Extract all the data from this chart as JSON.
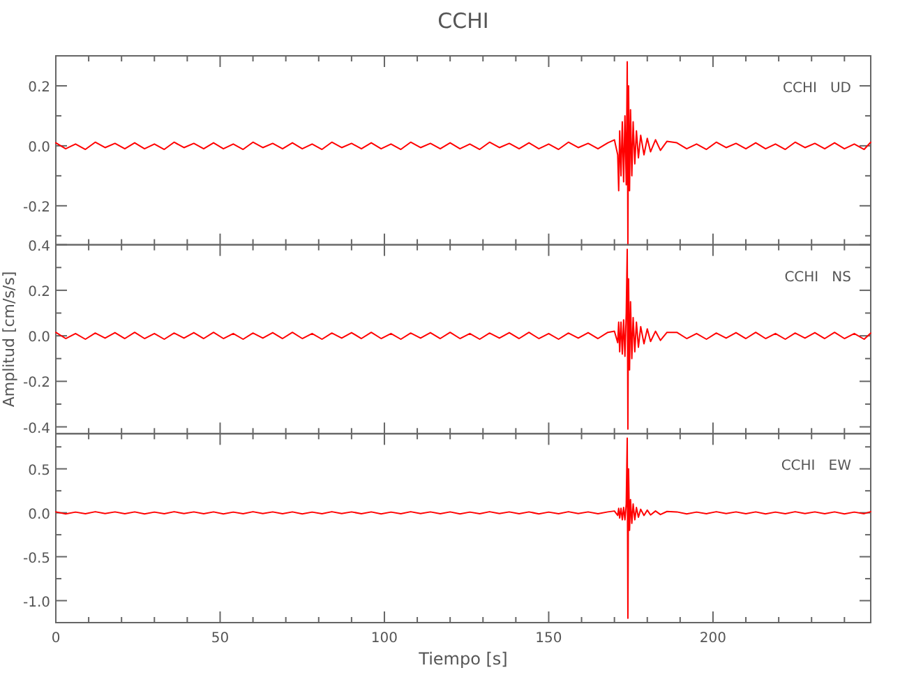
{
  "chart_data": [
    {
      "type": "line",
      "title": "CCHI",
      "annotations": [
        "CCHI   UD"
      ],
      "tick_labels": "y",
      "x": [
        0,
        3,
        6,
        9,
        12,
        15,
        18,
        21,
        24,
        27,
        30,
        33,
        36,
        39,
        42,
        45,
        48,
        51,
        54,
        57,
        60,
        63,
        66,
        69,
        72,
        75,
        78,
        81,
        84,
        87,
        90,
        93,
        96,
        99,
        102,
        105,
        108,
        111,
        114,
        117,
        120,
        123,
        126,
        129,
        132,
        135,
        138,
        141,
        144,
        147,
        150,
        153,
        156,
        159,
        162,
        165,
        168,
        170,
        171,
        171.3,
        171.6,
        172,
        172.4,
        172.8,
        173.2,
        173.6,
        173.9,
        174.1,
        174.3,
        174.6,
        174.9,
        175.3,
        175.7,
        176.2,
        176.7,
        177.3,
        178,
        179,
        180,
        181,
        182.5,
        184,
        186,
        189,
        192,
        195,
        198,
        201,
        204,
        207,
        210,
        213,
        216,
        219,
        222,
        225,
        228,
        231,
        234,
        237,
        240,
        243,
        246,
        248
      ],
      "series": [
        {
          "color": "#ff0000",
          "values": [
            0.01,
            -0.01,
            0.006,
            -0.012,
            0.012,
            -0.006,
            0.008,
            -0.01,
            0.01,
            -0.01,
            0.006,
            -0.012,
            0.012,
            -0.006,
            0.008,
            -0.01,
            0.01,
            -0.01,
            0.006,
            -0.012,
            0.012,
            -0.006,
            0.008,
            -0.01,
            0.01,
            -0.01,
            0.006,
            -0.012,
            0.012,
            -0.006,
            0.008,
            -0.01,
            0.01,
            -0.01,
            0.006,
            -0.012,
            0.012,
            -0.006,
            0.008,
            -0.01,
            0.01,
            -0.01,
            0.006,
            -0.012,
            0.012,
            -0.006,
            0.008,
            -0.01,
            0.01,
            -0.01,
            0.006,
            -0.012,
            0.012,
            -0.006,
            0.008,
            -0.01,
            0.01,
            0.02,
            -0.03,
            -0.15,
            0.05,
            -0.1,
            0.08,
            -0.12,
            0.1,
            -0.13,
            0.28,
            -0.33,
            0.2,
            -0.15,
            0.12,
            -0.1,
            0.08,
            -0.06,
            0.05,
            -0.04,
            0.035,
            -0.03,
            0.025,
            -0.02,
            0.02,
            -0.015,
            0.015,
            0.01,
            -0.01,
            0.006,
            -0.012,
            0.012,
            -0.006,
            0.008,
            -0.01,
            0.01,
            -0.01,
            0.006,
            -0.012,
            0.012,
            -0.006,
            0.008,
            -0.01,
            0.01,
            -0.01,
            0.006,
            -0.012,
            0.012
          ]
        }
      ],
      "xlim": [
        0,
        248
      ],
      "xticks": [
        0,
        {
          "value": 10,
          "label": null
        },
        {
          "value": 20,
          "label": null
        },
        {
          "value": 30,
          "label": null
        },
        {
          "value": 40,
          "label": null
        },
        50,
        {
          "value": 60,
          "label": null
        },
        {
          "value": 70,
          "label": null
        },
        {
          "value": 80,
          "label": null
        },
        {
          "value": 90,
          "label": null
        },
        100,
        {
          "value": 110,
          "label": null
        },
        {
          "value": 120,
          "label": null
        },
        {
          "value": 130,
          "label": null
        },
        {
          "value": 140,
          "label": null
        },
        150,
        {
          "value": 160,
          "label": null
        },
        {
          "value": 170,
          "label": null
        },
        {
          "value": 180,
          "label": null
        },
        {
          "value": 190,
          "label": null
        },
        200,
        {
          "value": 210,
          "label": null
        },
        {
          "value": 220,
          "label": null
        },
        {
          "value": 230,
          "label": null
        },
        {
          "value": 240,
          "label": null
        }
      ],
      "ylim": [
        -0.33,
        0.3
      ],
      "yticks": [
        {
          "value": -0.3,
          "label": null
        },
        {
          "value": -0.2,
          "label": "-0.2"
        },
        {
          "value": -0.1,
          "label": null
        },
        {
          "value": 0,
          "label": "0.0"
        },
        {
          "value": 0.1,
          "label": null
        },
        {
          "value": 0.2,
          "label": "0.2"
        }
      ]
    },
    {
      "type": "line",
      "ylabel": "Amplitud [cm/s/s]",
      "annotations": [
        "CCHI   NS"
      ],
      "tick_labels": "y",
      "x": [
        0,
        3,
        6,
        9,
        12,
        15,
        18,
        21,
        24,
        27,
        30,
        33,
        36,
        39,
        42,
        45,
        48,
        51,
        54,
        57,
        60,
        63,
        66,
        69,
        72,
        75,
        78,
        81,
        84,
        87,
        90,
        93,
        96,
        99,
        102,
        105,
        108,
        111,
        114,
        117,
        120,
        123,
        126,
        129,
        132,
        135,
        138,
        141,
        144,
        147,
        150,
        153,
        156,
        159,
        162,
        165,
        168,
        170,
        171,
        171.3,
        171.6,
        172,
        172.4,
        172.8,
        173.2,
        173.6,
        173.9,
        174.1,
        174.3,
        174.6,
        174.9,
        175.3,
        175.7,
        176.2,
        176.7,
        177.3,
        178,
        179,
        180,
        181,
        182.5,
        184,
        186,
        189,
        192,
        195,
        198,
        201,
        204,
        207,
        210,
        213,
        216,
        219,
        222,
        225,
        228,
        231,
        234,
        237,
        240,
        243,
        246,
        248
      ],
      "series": [
        {
          "color": "#ff0000",
          "values": [
            0.015,
            -0.012,
            0.01,
            -0.015,
            0.012,
            -0.01,
            0.014,
            -0.012,
            0.015,
            -0.012,
            0.01,
            -0.015,
            0.012,
            -0.01,
            0.014,
            -0.012,
            0.015,
            -0.012,
            0.01,
            -0.015,
            0.012,
            -0.01,
            0.014,
            -0.012,
            0.015,
            -0.012,
            0.01,
            -0.015,
            0.012,
            -0.01,
            0.014,
            -0.012,
            0.015,
            -0.012,
            0.01,
            -0.015,
            0.012,
            -0.01,
            0.014,
            -0.012,
            0.015,
            -0.012,
            0.01,
            -0.015,
            0.012,
            -0.01,
            0.014,
            -0.012,
            0.015,
            -0.012,
            0.01,
            -0.015,
            0.012,
            -0.01,
            0.014,
            -0.012,
            0.015,
            0.02,
            -0.03,
            0.06,
            -0.07,
            0.06,
            -0.08,
            0.07,
            -0.09,
            0.1,
            0.38,
            -0.41,
            0.25,
            -0.15,
            0.15,
            -0.1,
            0.08,
            -0.07,
            0.06,
            -0.05,
            0.04,
            -0.035,
            0.03,
            -0.025,
            0.02,
            -0.02,
            0.015,
            0.015,
            -0.012,
            0.01,
            -0.015,
            0.012,
            -0.01,
            0.014,
            -0.012,
            0.015,
            -0.012,
            0.01,
            -0.015,
            0.012,
            -0.01,
            0.014,
            -0.012,
            0.015,
            -0.012,
            0.01,
            -0.015,
            0.012
          ]
        }
      ],
      "xlim": [
        0,
        248
      ],
      "xticks": [
        0,
        {
          "value": 10,
          "label": null
        },
        {
          "value": 20,
          "label": null
        },
        {
          "value": 30,
          "label": null
        },
        {
          "value": 40,
          "label": null
        },
        50,
        {
          "value": 60,
          "label": null
        },
        {
          "value": 70,
          "label": null
        },
        {
          "value": 80,
          "label": null
        },
        {
          "value": 90,
          "label": null
        },
        100,
        {
          "value": 110,
          "label": null
        },
        {
          "value": 120,
          "label": null
        },
        {
          "value": 130,
          "label": null
        },
        {
          "value": 140,
          "label": null
        },
        150,
        {
          "value": 160,
          "label": null
        },
        {
          "value": 170,
          "label": null
        },
        {
          "value": 180,
          "label": null
        },
        {
          "value": 190,
          "label": null
        },
        200,
        {
          "value": 210,
          "label": null
        },
        {
          "value": 220,
          "label": null
        },
        {
          "value": 230,
          "label": null
        },
        {
          "value": 240,
          "label": null
        }
      ],
      "ylim": [
        -0.43,
        0.4
      ],
      "yticks": [
        {
          "value": -0.4,
          "label": "-0.4"
        },
        {
          "value": -0.3,
          "label": null
        },
        {
          "value": -0.2,
          "label": "-0.2"
        },
        {
          "value": -0.1,
          "label": null
        },
        {
          "value": 0,
          "label": "0.0"
        },
        {
          "value": 0.1,
          "label": null
        },
        {
          "value": 0.2,
          "label": "0.2"
        },
        {
          "value": 0.3,
          "label": null
        },
        {
          "value": 0.4,
          "label": "0.4"
        }
      ]
    },
    {
      "type": "line",
      "xlabel": "Tiempo [s]",
      "annotations": [
        "CCHI   EW"
      ],
      "x": [
        0,
        3,
        6,
        9,
        12,
        15,
        18,
        21,
        24,
        27,
        30,
        33,
        36,
        39,
        42,
        45,
        48,
        51,
        54,
        57,
        60,
        63,
        66,
        69,
        72,
        75,
        78,
        81,
        84,
        87,
        90,
        93,
        96,
        99,
        102,
        105,
        108,
        111,
        114,
        117,
        120,
        123,
        126,
        129,
        132,
        135,
        138,
        141,
        144,
        147,
        150,
        153,
        156,
        159,
        162,
        165,
        168,
        170,
        171,
        171.3,
        171.6,
        172,
        172.4,
        172.8,
        173.2,
        173.6,
        173.9,
        174.1,
        174.3,
        174.6,
        174.9,
        175.3,
        175.7,
        176.2,
        176.7,
        177.3,
        178,
        179,
        180,
        181,
        182.5,
        184,
        186,
        189,
        192,
        195,
        198,
        201,
        204,
        207,
        210,
        213,
        216,
        219,
        222,
        225,
        228,
        231,
        234,
        237,
        240,
        243,
        246,
        248
      ],
      "series": [
        {
          "color": "#ff0000",
          "values": [
            0.01,
            -0.012,
            0.008,
            -0.01,
            0.012,
            -0.008,
            0.01,
            -0.01,
            0.01,
            -0.012,
            0.008,
            -0.01,
            0.012,
            -0.008,
            0.01,
            -0.01,
            0.01,
            -0.012,
            0.008,
            -0.01,
            0.012,
            -0.008,
            0.01,
            -0.01,
            0.01,
            -0.012,
            0.008,
            -0.01,
            0.012,
            -0.008,
            0.01,
            -0.01,
            0.01,
            -0.012,
            0.008,
            -0.01,
            0.012,
            -0.008,
            0.01,
            -0.01,
            0.01,
            -0.012,
            0.008,
            -0.01,
            0.012,
            -0.008,
            0.01,
            -0.01,
            0.01,
            -0.012,
            0.008,
            -0.01,
            0.012,
            -0.008,
            0.01,
            -0.01,
            0.01,
            0.02,
            -0.03,
            0.05,
            -0.06,
            0.05,
            -0.08,
            0.06,
            -0.08,
            0.1,
            0.85,
            -1.2,
            0.5,
            -0.2,
            0.15,
            -0.12,
            0.1,
            -0.08,
            0.06,
            -0.05,
            0.04,
            -0.03,
            0.03,
            -0.025,
            0.02,
            -0.02,
            0.015,
            0.01,
            -0.012,
            0.008,
            -0.01,
            0.012,
            -0.008,
            0.01,
            -0.01,
            0.01,
            -0.012,
            0.008,
            -0.01,
            0.012,
            -0.008,
            0.01,
            -0.01,
            0.01,
            -0.012,
            0.008,
            -0.01,
            0.012
          ]
        }
      ],
      "xlim": [
        0,
        248
      ],
      "xticks": [
        0,
        {
          "value": 10,
          "label": null
        },
        {
          "value": 20,
          "label": null
        },
        {
          "value": 30,
          "label": null
        },
        {
          "value": 40,
          "label": null
        },
        50,
        {
          "value": 60,
          "label": null
        },
        {
          "value": 70,
          "label": null
        },
        {
          "value": 80,
          "label": null
        },
        {
          "value": 90,
          "label": null
        },
        100,
        {
          "value": 110,
          "label": null
        },
        {
          "value": 120,
          "label": null
        },
        {
          "value": 130,
          "label": null
        },
        {
          "value": 140,
          "label": null
        },
        150,
        {
          "value": 160,
          "label": null
        },
        {
          "value": 170,
          "label": null
        },
        {
          "value": 180,
          "label": null
        },
        {
          "value": 190,
          "label": null
        },
        200,
        {
          "value": 210,
          "label": null
        },
        {
          "value": 220,
          "label": null
        },
        {
          "value": 230,
          "label": null
        },
        {
          "value": 240,
          "label": null
        }
      ],
      "ylim": [
        -1.25,
        0.9
      ],
      "yticks": [
        {
          "value": -1.0,
          "label": "-1.0"
        },
        {
          "value": -0.75,
          "label": null
        },
        {
          "value": -0.5,
          "label": "-0.5"
        },
        {
          "value": -0.25,
          "label": null
        },
        {
          "value": 0,
          "label": "0.0"
        },
        {
          "value": 0.25,
          "label": null
        },
        {
          "value": 0.5,
          "label": "0.5"
        },
        {
          "value": 0.75,
          "label": null
        }
      ]
    }
  ]
}
